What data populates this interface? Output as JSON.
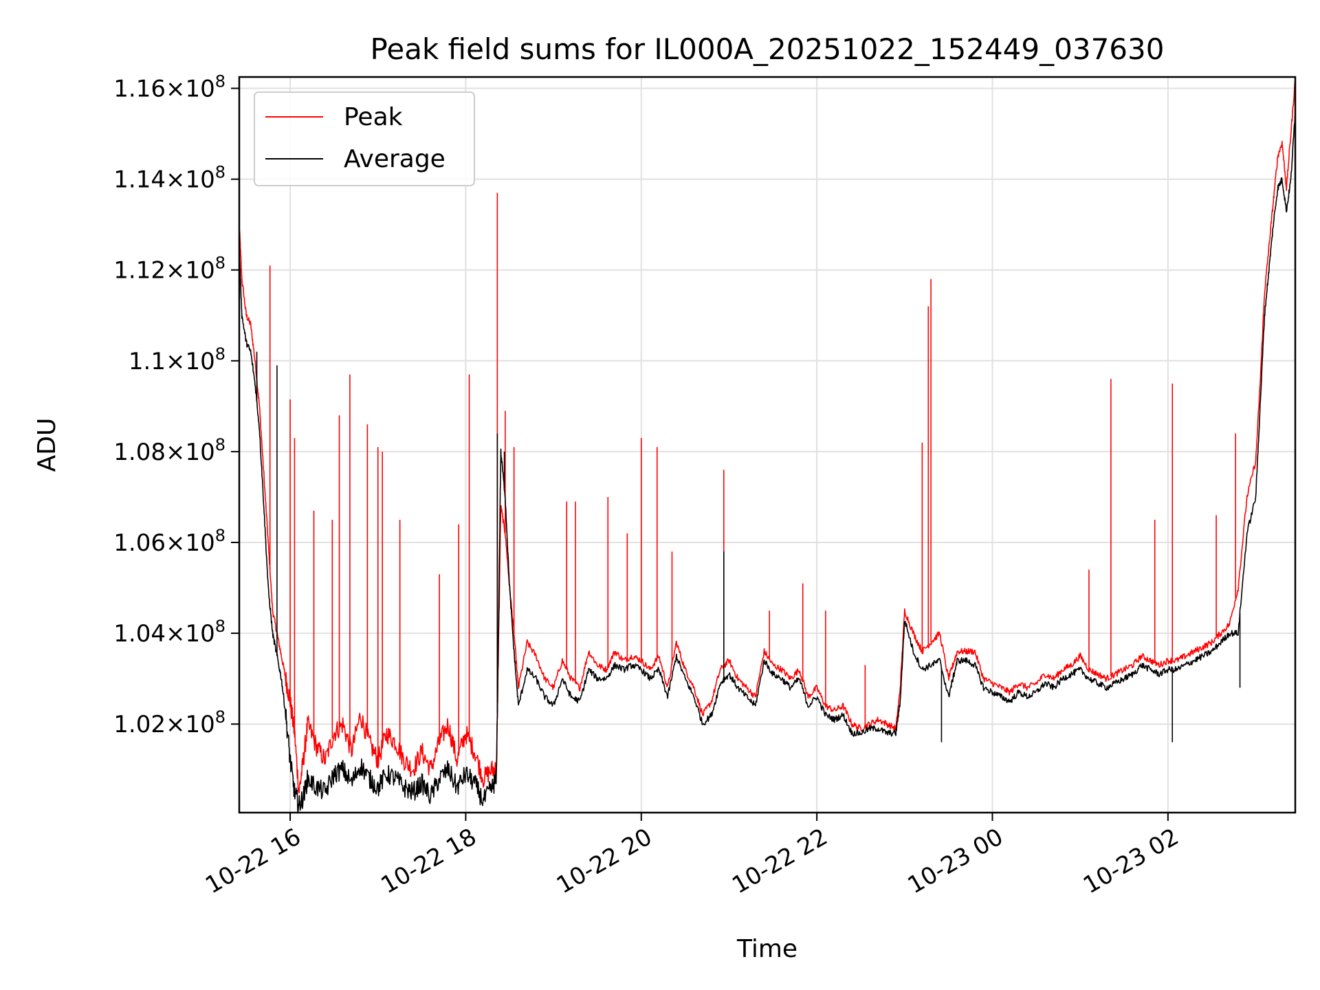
{
  "chart_data": {
    "type": "line",
    "title": "Peak field sums for IL000A_20251022_152449_037630",
    "xlabel": "Time",
    "ylabel": "ADU",
    "x_unit": "hours since 2025-10-22 00:00",
    "xlim": [
      15.42,
      27.45
    ],
    "ylim": [
      100050000.0,
      116250000.0
    ],
    "grid": true,
    "legend_position": "top-left",
    "x_ticks": [
      {
        "value": 16,
        "label": "10-22 16"
      },
      {
        "value": 18,
        "label": "10-22 18"
      },
      {
        "value": 20,
        "label": "10-22 20"
      },
      {
        "value": 22,
        "label": "10-22 22"
      },
      {
        "value": 24,
        "label": "10-23 00"
      },
      {
        "value": 26,
        "label": "10-23 02"
      }
    ],
    "y_ticks": [
      {
        "value": 102000000.0,
        "mantissa": "1.02",
        "exp": "8"
      },
      {
        "value": 104000000.0,
        "mantissa": "1.04",
        "exp": "8"
      },
      {
        "value": 106000000.0,
        "mantissa": "1.06",
        "exp": "8"
      },
      {
        "value": 108000000.0,
        "mantissa": "1.08",
        "exp": "8"
      },
      {
        "value": 110000000.0,
        "mantissa": "1.1",
        "exp": "8"
      },
      {
        "value": 112000000.0,
        "mantissa": "1.12",
        "exp": "8"
      },
      {
        "value": 114000000.0,
        "mantissa": "1.14",
        "exp": "8"
      },
      {
        "value": 116000000.0,
        "mantissa": "1.16",
        "exp": "8"
      }
    ],
    "series": [
      {
        "name": "Peak",
        "color": "#ff0000",
        "x": [
          15.42,
          15.45,
          15.5,
          15.55,
          15.6,
          15.65,
          15.7,
          15.75,
          15.8,
          15.85,
          15.9,
          15.95,
          16.0,
          16.05,
          16.1,
          16.15,
          16.2,
          16.3,
          16.4,
          16.5,
          16.6,
          16.7,
          16.8,
          16.9,
          17.0,
          17.1,
          17.2,
          17.3,
          17.4,
          17.5,
          17.6,
          17.7,
          17.8,
          17.9,
          18.0,
          18.1,
          18.2,
          18.3,
          18.35,
          18.4,
          18.45,
          18.5,
          18.55,
          18.6,
          18.7,
          18.8,
          18.9,
          19.0,
          19.1,
          19.2,
          19.3,
          19.4,
          19.5,
          19.6,
          19.7,
          19.8,
          19.9,
          20.0,
          20.1,
          20.2,
          20.3,
          20.4,
          20.5,
          20.6,
          20.7,
          20.8,
          20.9,
          21.0,
          21.1,
          21.2,
          21.3,
          21.4,
          21.5,
          21.6,
          21.7,
          21.8,
          21.9,
          22.0,
          22.1,
          22.2,
          22.3,
          22.4,
          22.5,
          22.6,
          22.7,
          22.8,
          22.9,
          22.95,
          23.0,
          23.1,
          23.2,
          23.3,
          23.4,
          23.5,
          23.55,
          23.6,
          23.7,
          23.8,
          23.9,
          24.0,
          24.1,
          24.2,
          24.3,
          24.4,
          24.5,
          24.6,
          24.7,
          24.8,
          24.9,
          25.0,
          25.1,
          25.2,
          25.3,
          25.4,
          25.5,
          25.6,
          25.7,
          25.8,
          25.9,
          26.0,
          26.1,
          26.2,
          26.3,
          26.4,
          26.5,
          26.6,
          26.7,
          26.8,
          26.9,
          27.0,
          27.05,
          27.1,
          27.15,
          27.2,
          27.25,
          27.3,
          27.35,
          27.4,
          27.45
        ],
        "values": [
          113000000.0,
          111800000.0,
          111000000.0,
          110800000.0,
          110000000.0,
          109000000.0,
          107500000.0,
          106000000.0,
          104500000.0,
          104000000.0,
          103500000.0,
          103000000.0,
          102500000.0,
          101800000.0,
          100500000.0,
          101200000.0,
          102000000.0,
          101500000.0,
          101200000.0,
          101800000.0,
          102000000.0,
          101400000.0,
          102200000.0,
          101600000.0,
          101200000.0,
          101800000.0,
          101600000.0,
          101200000.0,
          101000000.0,
          101400000.0,
          101000000.0,
          101600000.0,
          102000000.0,
          101200000.0,
          101800000.0,
          101400000.0,
          100800000.0,
          101000000.0,
          101000000.0,
          106800000.0,
          106200000.0,
          105000000.0,
          104000000.0,
          102800000.0,
          103800000.0,
          103500000.0,
          103000000.0,
          102800000.0,
          103400000.0,
          103000000.0,
          102800000.0,
          103600000.0,
          103300000.0,
          103200000.0,
          103600000.0,
          103400000.0,
          103500000.0,
          103400000.0,
          103200000.0,
          103500000.0,
          102800000.0,
          103800000.0,
          103200000.0,
          102800000.0,
          102200000.0,
          102500000.0,
          103200000.0,
          103400000.0,
          103000000.0,
          102800000.0,
          102600000.0,
          103600000.0,
          103300000.0,
          103200000.0,
          103000000.0,
          103200000.0,
          102600000.0,
          102800000.0,
          102400000.0,
          102300000.0,
          102400000.0,
          102000000.0,
          101900000.0,
          102000000.0,
          102100000.0,
          102000000.0,
          101900000.0,
          102800000.0,
          104500000.0,
          104000000.0,
          103600000.0,
          103800000.0,
          104000000.0,
          103000000.0,
          103300000.0,
          103600000.0,
          103600000.0,
          103600000.0,
          103000000.0,
          102900000.0,
          102800000.0,
          102700000.0,
          102900000.0,
          102800000.0,
          102900000.0,
          103100000.0,
          103000000.0,
          103200000.0,
          103300000.0,
          103500000.0,
          103200000.0,
          103100000.0,
          103000000.0,
          103100000.0,
          103200000.0,
          103300000.0,
          103500000.0,
          103400000.0,
          103300000.0,
          103400000.0,
          103400000.0,
          103500000.0,
          103600000.0,
          103700000.0,
          103800000.0,
          104000000.0,
          104200000.0,
          105000000.0,
          107000000.0,
          107800000.0,
          109500000.0,
          111500000.0,
          112500000.0,
          113500000.0,
          114500000.0,
          114800000.0,
          113800000.0,
          115000000.0,
          116200000.0
        ],
        "spikes": [
          {
            "x": 15.77,
            "y": 112100000.0
          },
          {
            "x": 16.0,
            "y": 109150000.0
          },
          {
            "x": 16.05,
            "y": 108300000.0
          },
          {
            "x": 16.27,
            "y": 106700000.0
          },
          {
            "x": 16.48,
            "y": 106500000.0
          },
          {
            "x": 16.56,
            "y": 108800000.0
          },
          {
            "x": 16.68,
            "y": 109700000.0
          },
          {
            "x": 16.88,
            "y": 108600000.0
          },
          {
            "x": 17.0,
            "y": 108100000.0
          },
          {
            "x": 17.05,
            "y": 108000000.0
          },
          {
            "x": 17.25,
            "y": 106500000.0
          },
          {
            "x": 17.7,
            "y": 105300000.0
          },
          {
            "x": 17.92,
            "y": 106400000.0
          },
          {
            "x": 18.04,
            "y": 109700000.0
          },
          {
            "x": 18.36,
            "y": 113700000.0
          },
          {
            "x": 18.45,
            "y": 108900000.0
          },
          {
            "x": 18.55,
            "y": 108100000.0
          },
          {
            "x": 19.15,
            "y": 106900000.0
          },
          {
            "x": 19.25,
            "y": 106900000.0
          },
          {
            "x": 19.62,
            "y": 107000000.0
          },
          {
            "x": 19.84,
            "y": 106200000.0
          },
          {
            "x": 20.0,
            "y": 108300000.0
          },
          {
            "x": 20.18,
            "y": 108100000.0
          },
          {
            "x": 20.35,
            "y": 105800000.0
          },
          {
            "x": 20.94,
            "y": 107600000.0
          },
          {
            "x": 21.46,
            "y": 104500000.0
          },
          {
            "x": 21.84,
            "y": 105100000.0
          },
          {
            "x": 22.1,
            "y": 104500000.0
          },
          {
            "x": 22.55,
            "y": 103300000.0
          },
          {
            "x": 23.2,
            "y": 108200000.0
          },
          {
            "x": 23.27,
            "y": 111200000.0
          },
          {
            "x": 23.3,
            "y": 111800000.0
          },
          {
            "x": 25.1,
            "y": 105400000.0
          },
          {
            "x": 25.35,
            "y": 109600000.0
          },
          {
            "x": 25.85,
            "y": 106500000.0
          },
          {
            "x": 26.05,
            "y": 109500000.0
          },
          {
            "x": 26.55,
            "y": 106600000.0
          },
          {
            "x": 26.77,
            "y": 108400000.0
          }
        ]
      },
      {
        "name": "Average",
        "color": "#000000",
        "x": [
          15.42,
          15.45,
          15.5,
          15.55,
          15.6,
          15.65,
          15.7,
          15.75,
          15.8,
          15.85,
          15.9,
          15.95,
          16.0,
          16.05,
          16.1,
          16.15,
          16.2,
          16.3,
          16.4,
          16.5,
          16.6,
          16.7,
          16.8,
          16.9,
          17.0,
          17.1,
          17.2,
          17.3,
          17.4,
          17.5,
          17.6,
          17.7,
          17.8,
          17.9,
          18.0,
          18.1,
          18.2,
          18.3,
          18.35,
          18.4,
          18.45,
          18.5,
          18.55,
          18.6,
          18.7,
          18.8,
          18.9,
          19.0,
          19.1,
          19.2,
          19.3,
          19.4,
          19.5,
          19.6,
          19.7,
          19.8,
          19.9,
          20.0,
          20.1,
          20.2,
          20.3,
          20.4,
          20.5,
          20.6,
          20.7,
          20.8,
          20.9,
          21.0,
          21.1,
          21.2,
          21.3,
          21.4,
          21.5,
          21.6,
          21.7,
          21.8,
          21.9,
          22.0,
          22.1,
          22.2,
          22.3,
          22.4,
          22.5,
          22.6,
          22.7,
          22.8,
          22.9,
          22.95,
          23.0,
          23.1,
          23.2,
          23.3,
          23.4,
          23.5,
          23.55,
          23.6,
          23.7,
          23.8,
          23.9,
          24.0,
          24.1,
          24.2,
          24.3,
          24.4,
          24.5,
          24.6,
          24.7,
          24.8,
          24.9,
          25.0,
          25.1,
          25.2,
          25.3,
          25.4,
          25.5,
          25.6,
          25.7,
          25.8,
          25.9,
          26.0,
          26.1,
          26.2,
          26.3,
          26.4,
          26.5,
          26.6,
          26.7,
          26.8,
          26.9,
          27.0,
          27.05,
          27.1,
          27.15,
          27.2,
          27.25,
          27.3,
          27.35,
          27.4,
          27.45
        ],
        "values": [
          112500000.0,
          111000000.0,
          110400000.0,
          110200000.0,
          109500000.0,
          108500000.0,
          106800000.0,
          105000000.0,
          104000000.0,
          103500000.0,
          103000000.0,
          102200000.0,
          101200000.0,
          100500000.0,
          100200000.0,
          100400000.0,
          100800000.0,
          100600000.0,
          100500000.0,
          100900000.0,
          101000000.0,
          100700000.0,
          101100000.0,
          100800000.0,
          100600000.0,
          100900000.0,
          100800000.0,
          100600000.0,
          100500000.0,
          100700000.0,
          100400000.0,
          100800000.0,
          101000000.0,
          100600000.0,
          100900000.0,
          100700000.0,
          100300000.0,
          100600000.0,
          100800000.0,
          108000000.0,
          107000000.0,
          105000000.0,
          103600000.0,
          102400000.0,
          103200000.0,
          103000000.0,
          102600000.0,
          102400000.0,
          103000000.0,
          102600000.0,
          102500000.0,
          103200000.0,
          103000000.0,
          103000000.0,
          103300000.0,
          103200000.0,
          103300000.0,
          103200000.0,
          103000000.0,
          103200000.0,
          102600000.0,
          103500000.0,
          103000000.0,
          102600000.0,
          102000000.0,
          102200000.0,
          102900000.0,
          103100000.0,
          102800000.0,
          102600000.0,
          102400000.0,
          103400000.0,
          103100000.0,
          103000000.0,
          102800000.0,
          103000000.0,
          102400000.0,
          102600000.0,
          102200000.0,
          102100000.0,
          102200000.0,
          101800000.0,
          101800000.0,
          101900000.0,
          101900000.0,
          101800000.0,
          101800000.0,
          102500000.0,
          104300000.0,
          103600000.0,
          103200000.0,
          103300000.0,
          103400000.0,
          102600000.0,
          103000000.0,
          103400000.0,
          103400000.0,
          103300000.0,
          102800000.0,
          102700000.0,
          102600000.0,
          102500000.0,
          102700000.0,
          102600000.0,
          102700000.0,
          102900000.0,
          102800000.0,
          103000000.0,
          103100000.0,
          103200000.0,
          103000000.0,
          102900000.0,
          102800000.0,
          102900000.0,
          103000000.0,
          103100000.0,
          103300000.0,
          103200000.0,
          103100000.0,
          103200000.0,
          103200000.0,
          103300000.0,
          103400000.0,
          103500000.0,
          103600000.0,
          103800000.0,
          104000000.0,
          104000000.0,
          106200000.0,
          107000000.0,
          109000000.0,
          111000000.0,
          112000000.0,
          113000000.0,
          113800000.0,
          114000000.0,
          113300000.0,
          114000000.0,
          115500000.0
        ],
        "spikes": [
          {
            "x": 15.62,
            "y": 110200000.0
          },
          {
            "x": 15.85,
            "y": 109900000.0
          },
          {
            "x": 18.36,
            "y": 108400000.0
          },
          {
            "x": 18.44,
            "y": 108000000.0
          },
          {
            "x": 20.94,
            "y": 105800000.0
          },
          {
            "x": 23.42,
            "y": 101600000.0
          },
          {
            "x": 26.05,
            "y": 101600000.0
          },
          {
            "x": 26.82,
            "y": 102800000.0
          }
        ]
      }
    ]
  }
}
